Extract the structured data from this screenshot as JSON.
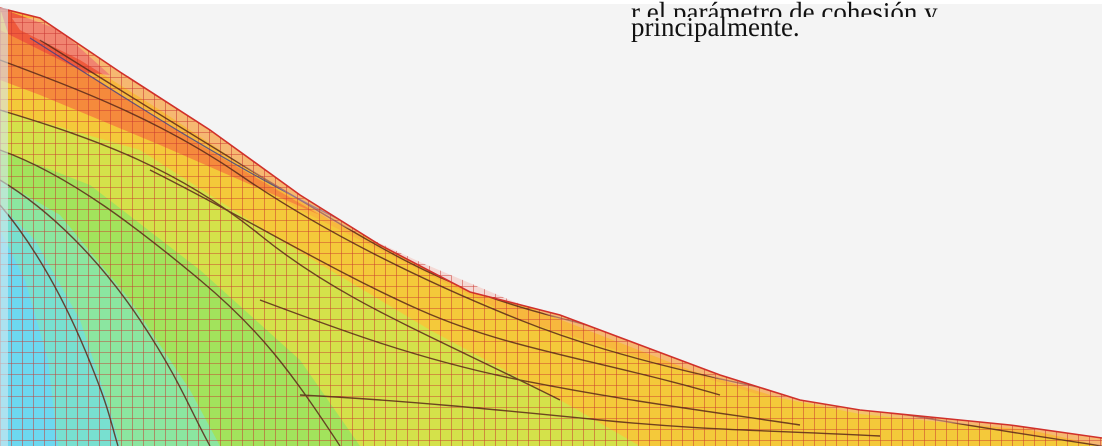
{
  "caption": {
    "cut_line": "r el parámetro de cohesión y",
    "line": "principalmente."
  },
  "figure": {
    "description_colors": {
      "background": "#f4f4f4",
      "mesh_line": "#c8332e",
      "contour_line": "#5a2a1a",
      "zone_colors": [
        "#6fdcf0",
        "#8ae8c6",
        "#8fe070",
        "#c8e44a",
        "#f4d236",
        "#f7b83e",
        "#f58a3c",
        "#ef5a3c"
      ]
    }
  }
}
